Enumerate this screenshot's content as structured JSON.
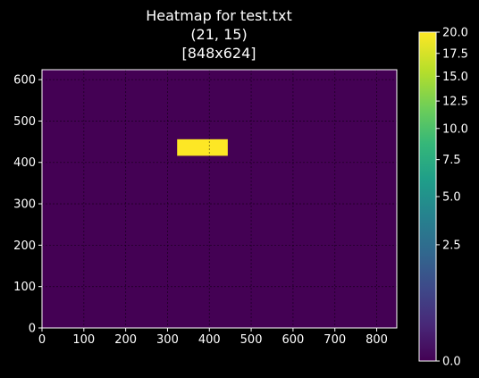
{
  "chart_data": {
    "type": "heatmap",
    "title_lines": [
      "Heatmap for test.txt",
      "(21, 15)",
      "[848x624]"
    ],
    "xlim": [
      0,
      848
    ],
    "ylim": [
      0,
      624
    ],
    "xticks": [
      0,
      100,
      200,
      300,
      400,
      500,
      600,
      700,
      800
    ],
    "yticks": [
      0,
      100,
      200,
      300,
      400,
      500,
      600
    ],
    "grid": true,
    "background_value": 0,
    "hot_cells": [
      {
        "x0": 323,
        "x1": 444,
        "y0": 416,
        "y1": 456,
        "value": 20
      }
    ],
    "colorbar": {
      "vmin": 0.0,
      "vmax": 20.0,
      "scale": "sqrt",
      "ticks": [
        0.0,
        2.5,
        5.0,
        7.5,
        10.0,
        12.5,
        15.0,
        17.5,
        20.0
      ],
      "tick_labels": [
        "0.0",
        "2.5",
        "5.0",
        "7.5",
        "10.0",
        "12.5",
        "15.0",
        "17.5",
        "20.0"
      ],
      "colormap": "viridis"
    }
  }
}
